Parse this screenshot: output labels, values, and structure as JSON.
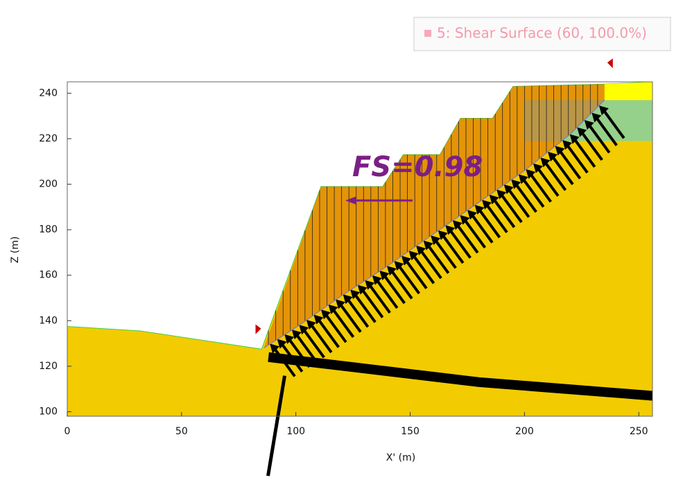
{
  "chart_data": {
    "type": "slope",
    "xlabel": "X' (m)",
    "ylabel": "Z (m)",
    "xlim": [
      0,
      256
    ],
    "ylim": [
      98,
      245
    ],
    "xticks": [
      0,
      50,
      100,
      150,
      200,
      250
    ],
    "yticks": [
      100,
      120,
      140,
      160,
      180,
      200,
      220,
      240
    ],
    "annotation": "FS=0.98",
    "legend": "5: Shear Surface (60, 100.0%)",
    "surface": {
      "color": "#f2cc00",
      "x": [
        0,
        32,
        85,
        111,
        138,
        147,
        163,
        172,
        186,
        195,
        235,
        256
      ],
      "values": [
        137.5,
        135.5,
        127.5,
        199,
        199,
        213,
        213,
        229,
        229,
        243,
        244,
        245
      ]
    },
    "slip": {
      "color": "#d9660f",
      "x": [
        86,
        100,
        120,
        140,
        160,
        180,
        200,
        220,
        235
      ],
      "values": [
        128,
        137,
        151,
        164,
        178,
        192,
        206,
        222,
        237
      ]
    },
    "upper_layer": {
      "color": "#95d18a",
      "x": [
        200,
        256
      ],
      "values": [
        219,
        219
      ]
    },
    "top_layer": {
      "color": "#ffff00",
      "x": [
        235,
        256
      ],
      "values": [
        237,
        237
      ]
    },
    "weak_layer": {
      "color": "#000000",
      "x": [
        88,
        130,
        180,
        256
      ],
      "values": [
        124,
        119,
        113,
        107
      ]
    }
  }
}
